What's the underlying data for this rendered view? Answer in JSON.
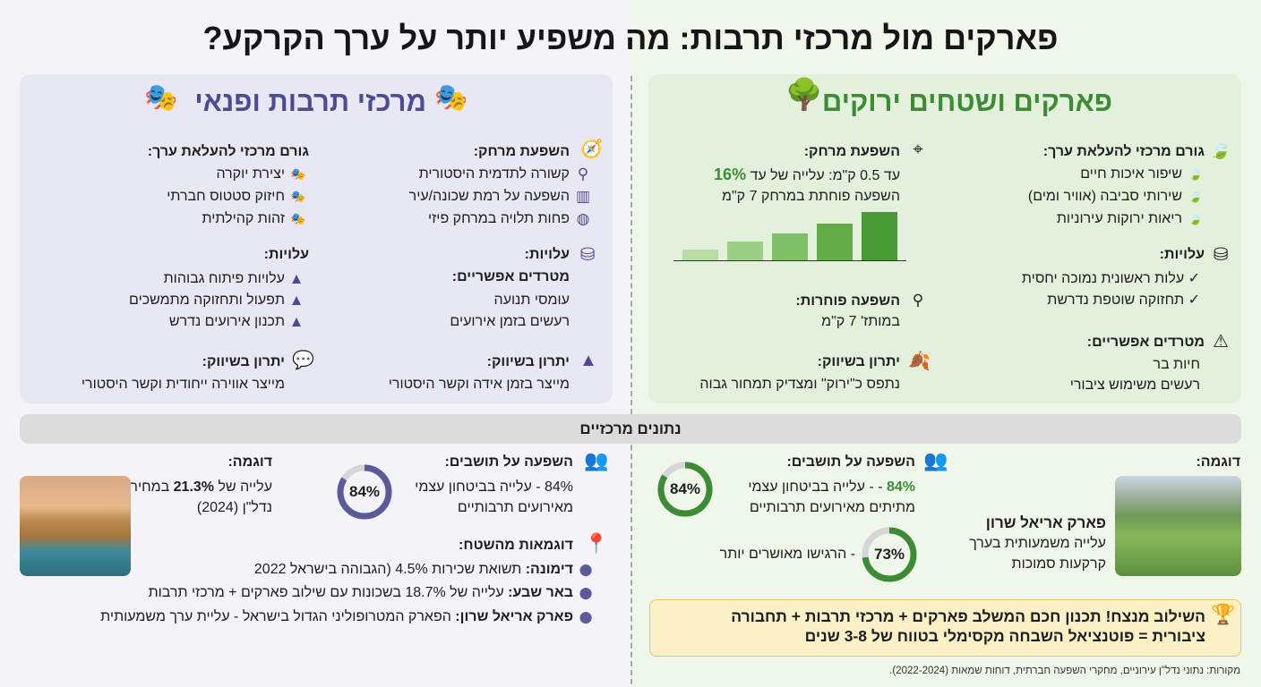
{
  "title": "פארקים מול מרכזי תרבות: מה משפיע יותר על ערך הקרקע?",
  "colors": {
    "green": "#3d8c35",
    "purple": "#4c4c94",
    "left_bg": "#e8e8f4",
    "right_bg": "#e3f0dc",
    "callout": "#fbf0c6"
  },
  "parks": {
    "title": "פארקים ושטחים ירוקים",
    "value_factor": {
      "heading": "גורם מרכזי להעלאת ערך:",
      "items": [
        "שיפור איכות חיים",
        "שירותי סביבה (אוויר ומים)",
        "ריאות ירוקות עירוניות"
      ]
    },
    "costs": {
      "heading": "עלויות:",
      "items": [
        "✓ עלות ראשונית נמוכה יחסית",
        "✓ תחזוקה שוטפת נדרשת"
      ]
    },
    "nuisances": {
      "heading": "מטרדים אפשריים:",
      "items": [
        "חיות בר",
        "רעשים משימוש ציבורי"
      ]
    },
    "distance": {
      "heading": "השפעת מרחק:",
      "line1_prefix": "עד 0.5 ק\"מ: עלייה של עד ",
      "line1_value": "16%",
      "line2": "השפעה פוחתת במרחק 7 ק\"מ",
      "bar_levels": [
        0.22,
        0.38,
        0.56,
        0.76,
        1.0
      ]
    },
    "lesser": {
      "heading": "השפעה פוחרות:",
      "text": "במותז' 7 ק\"מ"
    },
    "marketing": {
      "heading": "יתרון בשיווק:",
      "text": "נתפס כ\"ירוק\" ומצדיק תמחור גבוה"
    }
  },
  "culture": {
    "title": "מרכזי תרבות ופנאי",
    "distance": {
      "heading": "השפעת מרחק:",
      "items": [
        "קשורה לתדמית היסטורית",
        "השפעה על רמת שכונה/עיר",
        "פחות תלויה במרחק פיזי"
      ]
    },
    "value_factor": {
      "heading": "גורם מרכזי להעלאת ערך:",
      "items": [
        "יצירת יוקרה",
        "חיזוק סטטוס חברתי",
        "זהות קהילתית"
      ]
    },
    "costs_right": {
      "heading": "עלויות:"
    },
    "nuisances": {
      "heading": "מטרדים אפשריים:",
      "items": [
        "עומסי תנועה",
        "רעשים בזמן אירועים"
      ]
    },
    "costs": {
      "heading": "עלויות:",
      "items": [
        "עלויות פיתוח גבוהות",
        "תפעול ותחזוקה מתמשכים",
        "תכנון אירועים נדרש"
      ]
    },
    "marketing_right": {
      "heading": "יתרון בשיווק:",
      "text": "מייצר בזמן אידה וקשר היסטורי"
    },
    "marketing": {
      "heading": "יתרון בשיווק:",
      "text": "מייצר אווירה ייחודית וקשר היסטורי"
    }
  },
  "key_data": {
    "label": "נתונים מרכזיים"
  },
  "culture_data": {
    "residents": {
      "heading": "השפעה על תושבים:",
      "line1": "84% - עלייה בביטחון עצמי",
      "line2": "מאירועים תרבותיים",
      "donut_value": 84,
      "donut_label": "84%"
    },
    "example": {
      "heading": "דוגמה:",
      "line1_prefix": "עלייה של ",
      "line1_value": "21.3%",
      "line1_suffix": " במחירי",
      "line2": "נדל\"ן (2024)"
    },
    "field": {
      "heading": "דוגמאות מהשטח:",
      "items": [
        {
          "name": "דימונה:",
          "text": " תשואת שכירות 4.5% (הגבוהה בישראל 2022"
        },
        {
          "name": "באר שבע:",
          "text": " עלייה של 18.7% בשכונות עם שילוב פארקים + מרכזי תרבות"
        },
        {
          "name": "פארק אריאל שרון:",
          "text": " הפארק המטרופוליני הגדול בישראל - עליית ערך משמעותית"
        }
      ]
    }
  },
  "parks_data": {
    "example": {
      "heading": "דוגמה:",
      "name": "פארק אריאל שרון",
      "line1": "עלייה משמעותית בערך",
      "line2": "קרקעות סמוכות"
    },
    "residents": {
      "heading": "השפעה על תושבים:",
      "line1_value": "84%",
      "line1_rest": " - - עלייה בביטחון עצמי",
      "line2": "מתיתים מאירועים תרבותיים",
      "donut_value": 84,
      "donut_label": "84%"
    },
    "happy": {
      "text": "- הרגישו מאושרים יותר",
      "donut_value": 73,
      "donut_label": "73%"
    }
  },
  "callout": {
    "line1": "השילוב מנצח! תכנון חכם המשלב פארקים + מרכזי תרבות + תחבורה",
    "line2": "ציבורית = פוטנציאל השבחה מקסימלי בטווח של 3-8 שנים"
  },
  "sources": "מקורות: נתוני נדל\"ן עירוניים, מחקרי השפעה חברתית, דוחות שמאות (2022-2024)."
}
